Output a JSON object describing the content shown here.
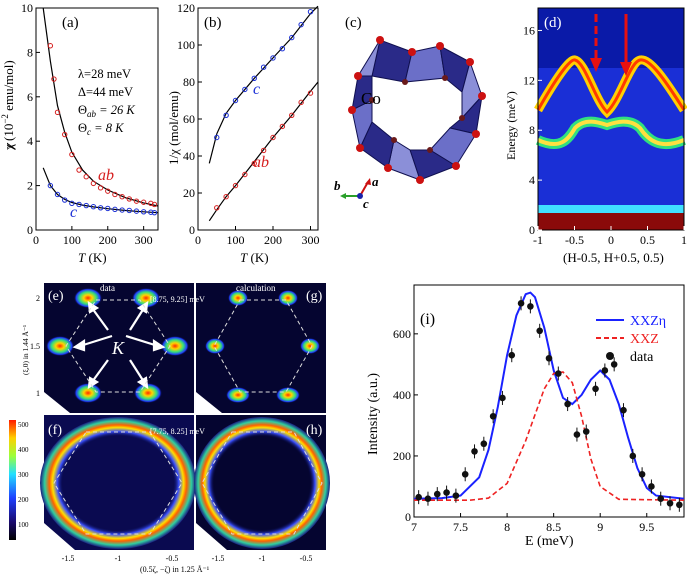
{
  "panels": {
    "a": {
      "label": "(a)",
      "ylabel_prefix": "χ (10",
      "ylabel_exp": "−2",
      "ylabel_suffix": " emu/mol)",
      "xlabel_T": "T",
      "xlabel_unit": " (K)",
      "params": [
        "λ=28 meV",
        "Δ=44 meV"
      ],
      "theta_ab": "Θ",
      "theta_ab_sub": "ab",
      "theta_ab_val": " = 26 K",
      "theta_c": "Θ",
      "theta_c_sub": "c",
      "theta_c_val": " = 8 K",
      "series_ab_label": "ab",
      "series_c_label": "c",
      "xticks": [
        "0",
        "100",
        "200",
        "300"
      ],
      "yticks": [
        "0",
        "2",
        "4",
        "6",
        "8",
        "10"
      ]
    },
    "b": {
      "label": "(b)",
      "ylabel": "1/χ (mol/emu)",
      "xlabel_T": "T",
      "xlabel_unit": " (K)",
      "series_c_label": "c",
      "series_ab_label": "ab",
      "xticks": [
        "0",
        "100",
        "200",
        "300"
      ],
      "yticks": [
        "0",
        "20",
        "40",
        "60",
        "80",
        "100",
        "120"
      ]
    },
    "c": {
      "label": "(c)",
      "atom_label": "Co",
      "axis_b": "b",
      "axis_a": "a",
      "axis_c": "c"
    },
    "d": {
      "label": "(d)",
      "ylabel": "Energy (meV)",
      "xlabel": "(H-0.5, H+0.5, 0.5)",
      "xticks": [
        "-1",
        "-0.5",
        "0",
        "0.5",
        "1"
      ],
      "yticks": [
        "0",
        "4",
        "8",
        "12",
        "16"
      ]
    },
    "e": {
      "label": "(e)",
      "header": "data",
      "range": "[8.75, 9.25] meV",
      "K_label": "K"
    },
    "f": {
      "label": "(f)",
      "range": "[7.75, 8.25] meV"
    },
    "g": {
      "label": "(g)",
      "header": "calculation"
    },
    "h": {
      "label": "(h)"
    },
    "efgh_axes": {
      "ylabel": "(ξ,0) in 1.44 Å⁻¹",
      "xlabel": "(0.5ζ, −ζ) in 1.25 Å⁻¹",
      "yticks": [
        "2",
        "1.5",
        "1"
      ],
      "xticks_left": [
        "-1.5",
        "-1",
        "-0.5"
      ],
      "xticks_right": [
        "-1.5",
        "-1",
        "-0.5"
      ],
      "colorbar_ticks": [
        "500",
        "400",
        "300",
        "200",
        "100"
      ]
    },
    "i": {
      "label": "(i)",
      "ylabel": "Intensity (a.u.)",
      "xlabel": "E (meV)",
      "legend": [
        "XXZη",
        "XXZ",
        "data"
      ],
      "xticks": [
        "7",
        "7.5",
        "8",
        "8.5",
        "9",
        "9.5"
      ],
      "yticks": [
        "0",
        "200",
        "400",
        "600"
      ]
    }
  },
  "colors": {
    "series_ab": "#d62020",
    "series_c": "#1a2fd6",
    "fit_blue": "#1a22ff",
    "fit_red": "#ee2222",
    "data_black": "#111111"
  },
  "chart_data": [
    {
      "panel": "a",
      "type": "scatter",
      "xlabel": "T (K)",
      "ylabel": "χ (10^-2 emu/mol)",
      "xlim": [
        0,
        340
      ],
      "ylim": [
        0,
        10
      ],
      "series": [
        {
          "name": "ab",
          "x": [
            40,
            50,
            60,
            80,
            100,
            120,
            140,
            160,
            180,
            200,
            220,
            240,
            260,
            280,
            300,
            320,
            330
          ],
          "y": [
            8.3,
            6.8,
            5.3,
            4.3,
            3.4,
            2.7,
            2.4,
            2.1,
            1.9,
            1.75,
            1.6,
            1.5,
            1.4,
            1.3,
            1.25,
            1.2,
            1.15
          ]
        },
        {
          "name": "c",
          "x": [
            40,
            60,
            80,
            100,
            120,
            140,
            160,
            180,
            200,
            220,
            240,
            260,
            280,
            300,
            320,
            330
          ],
          "y": [
            2.0,
            1.6,
            1.35,
            1.2,
            1.15,
            1.1,
            1.05,
            1.0,
            0.97,
            0.93,
            0.9,
            0.88,
            0.85,
            0.82,
            0.8,
            0.78
          ]
        }
      ],
      "fits": [
        {
          "name": "ab",
          "x": [
            20,
            40,
            60,
            80,
            100,
            130,
            160,
            200,
            250,
            300,
            340
          ],
          "y": [
            10.5,
            7.6,
            5.6,
            4.4,
            3.5,
            2.7,
            2.2,
            1.8,
            1.45,
            1.22,
            1.08
          ]
        },
        {
          "name": "c",
          "x": [
            20,
            40,
            60,
            80,
            100,
            130,
            160,
            200,
            250,
            300,
            340
          ],
          "y": [
            2.8,
            2.0,
            1.6,
            1.38,
            1.24,
            1.12,
            1.04,
            0.96,
            0.88,
            0.82,
            0.78
          ]
        }
      ]
    },
    {
      "panel": "b",
      "type": "scatter",
      "xlabel": "T (K)",
      "ylabel": "1/χ (mol/emu)",
      "xlim": [
        0,
        320
      ],
      "ylim": [
        0,
        120
      ],
      "series": [
        {
          "name": "c",
          "x": [
            50,
            75,
            100,
            125,
            150,
            175,
            200,
            225,
            250,
            275,
            300
          ],
          "y": [
            50,
            62,
            70,
            76,
            82,
            88,
            93,
            98,
            104,
            111,
            118
          ]
        },
        {
          "name": "ab",
          "x": [
            50,
            75,
            100,
            125,
            150,
            175,
            200,
            225,
            250,
            275,
            300
          ],
          "y": [
            12,
            18,
            24,
            30,
            36,
            43,
            50,
            56,
            62,
            69,
            74
          ]
        }
      ],
      "fits": [
        {
          "name": "c",
          "x": [
            30,
            50,
            75,
            100,
            150,
            200,
            250,
            300,
            320
          ],
          "y": [
            36,
            52,
            63,
            70,
            82,
            93,
            104,
            117,
            121
          ]
        },
        {
          "name": "ab",
          "x": [
            30,
            50,
            75,
            100,
            150,
            200,
            250,
            300,
            320
          ],
          "y": [
            5,
            11,
            18,
            24,
            37,
            50,
            62,
            75,
            80
          ]
        }
      ]
    },
    {
      "panel": "i",
      "type": "line",
      "xlabel": "E (meV)",
      "ylabel": "Intensity (a.u.)",
      "xlim": [
        7,
        9.9
      ],
      "ylim": [
        0,
        760
      ],
      "series": [
        {
          "name": "XXZη",
          "x": [
            7.0,
            7.3,
            7.5,
            7.7,
            7.8,
            7.9,
            8.0,
            8.1,
            8.2,
            8.25,
            8.3,
            8.4,
            8.5,
            8.6,
            8.7,
            8.8,
            8.9,
            9.0,
            9.1,
            9.2,
            9.3,
            9.4,
            9.5,
            9.6,
            9.9
          ],
          "y": [
            60,
            62,
            70,
            130,
            220,
            360,
            530,
            660,
            730,
            735,
            720,
            620,
            480,
            390,
            370,
            400,
            450,
            480,
            450,
            370,
            260,
            160,
            95,
            70,
            60
          ]
        },
        {
          "name": "XXZ",
          "x": [
            7.0,
            7.6,
            7.8,
            8.0,
            8.2,
            8.4,
            8.5,
            8.6,
            8.7,
            8.8,
            8.9,
            9.0,
            9.2,
            9.9
          ],
          "y": [
            55,
            55,
            62,
            110,
            250,
            420,
            470,
            475,
            440,
            330,
            190,
            100,
            58,
            55
          ]
        },
        {
          "name": "data",
          "x": [
            7.05,
            7.15,
            7.25,
            7.35,
            7.45,
            7.55,
            7.65,
            7.75,
            7.85,
            7.95,
            8.05,
            8.15,
            8.25,
            8.35,
            8.45,
            8.55,
            8.65,
            8.75,
            8.85,
            8.95,
            9.05,
            9.15,
            9.25,
            9.35,
            9.45,
            9.55,
            9.65,
            9.75,
            9.85
          ],
          "y": [
            65,
            60,
            75,
            80,
            70,
            140,
            215,
            240,
            330,
            390,
            530,
            700,
            690,
            610,
            520,
            470,
            370,
            270,
            280,
            420,
            480,
            500,
            350,
            200,
            140,
            100,
            60,
            45,
            40
          ]
        }
      ]
    }
  ]
}
